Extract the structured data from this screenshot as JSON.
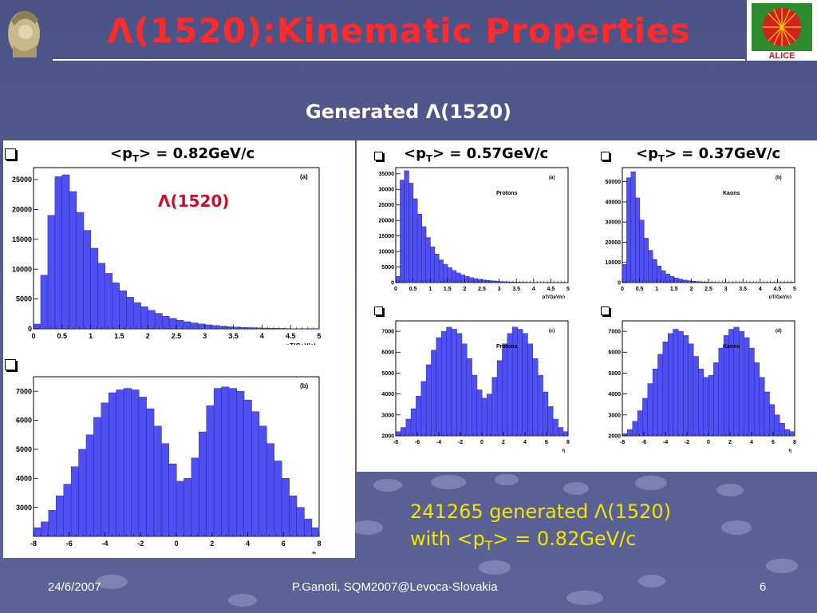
{
  "slide": {
    "title": "Λ(1520):Kinematic Properties",
    "subtitle": "Generated Λ(1520)",
    "caption_line1": "241265 generated Λ(1520)",
    "caption_line2_pre": "with <p",
    "caption_line2_sub": "T",
    "caption_line2_post": "> = 0.82GeV/c",
    "footer_date": "24/6/2007",
    "footer_center": "P.Ganoti, SQM2007@Levoca-Slovakia",
    "footer_page": "6",
    "logo_right_text": "ALICE"
  },
  "panels": {
    "lambda_title_pre": "<p",
    "lambda_title_sub": "T",
    "lambda_title_post": "> = 0.82GeV/c",
    "proton_title_pre": "<p",
    "proton_title_sub": "T",
    "proton_title_post": "> = 0.57GeV/c",
    "kaon_title_pre": "<p",
    "kaon_title_sub": "T",
    "kaon_title_post": "> = 0.37GeV/c",
    "lambda_label": "Λ(1520)"
  },
  "colors": {
    "title": "#ff2a2a",
    "hist_fill": "#4f4ff2",
    "caption": "#f5e400",
    "lambda_label": "#c8102e"
  },
  "chart_data": [
    {
      "id": "lambda-pt",
      "type": "bar",
      "tag": "(a)",
      "label": "",
      "xlabel": "pT(GeV/c)",
      "xlim": [
        0,
        5
      ],
      "ylim": [
        0,
        27000
      ],
      "xticks": [
        "0",
        "0.5",
        "1",
        "1.5",
        "2",
        "2.5",
        "3",
        "3.5",
        "4",
        "4.5",
        "5"
      ],
      "yticks": [
        "0",
        "5000",
        "10000",
        "15000",
        "20000",
        "25000"
      ],
      "values": [
        800,
        9000,
        19000,
        25500,
        25800,
        23000,
        19500,
        16500,
        13500,
        11000,
        9300,
        7700,
        6400,
        5300,
        4400,
        3700,
        3100,
        2600,
        2100,
        1750,
        1450,
        1200,
        1000,
        820,
        680,
        560,
        460,
        380,
        310,
        250,
        200,
        160,
        130,
        100,
        80,
        60,
        40,
        30,
        20,
        10
      ]
    },
    {
      "id": "lambda-eta",
      "type": "bar",
      "tag": "(b)",
      "label": "",
      "xlabel": "η",
      "xlim": [
        -8,
        8
      ],
      "ylim": [
        2000,
        7500
      ],
      "xticks": [
        "-8",
        "-6",
        "-4",
        "-2",
        "0",
        "2",
        "4",
        "6",
        "8"
      ],
      "yticks": [
        "3000",
        "4000",
        "5000",
        "6000",
        "7000"
      ],
      "values": [
        2300,
        2500,
        2900,
        3400,
        3800,
        4400,
        5000,
        5500,
        6100,
        6600,
        6950,
        7050,
        7100,
        7050,
        6800,
        6400,
        5800,
        5200,
        4500,
        3900,
        4000,
        4700,
        5600,
        6500,
        7100,
        7150,
        7100,
        7000,
        6700,
        6300,
        5800,
        5200,
        4600,
        4000,
        3400,
        3000,
        2600,
        2300
      ]
    },
    {
      "id": "proton-pt",
      "type": "bar",
      "tag": "(a)",
      "label": "Protons",
      "xlabel": "pT(GeV/c)",
      "xlim": [
        0,
        5
      ],
      "ylim": [
        0,
        37000
      ],
      "xticks": [
        "0",
        "0.5",
        "1",
        "1.5",
        "2",
        "2.5",
        "3",
        "3.5",
        "4",
        "4.5",
        "5"
      ],
      "yticks": [
        "0",
        "5000",
        "10000",
        "15000",
        "20000",
        "25000",
        "30000",
        "35000"
      ],
      "values": [
        2000,
        33000,
        36000,
        32000,
        27000,
        22000,
        18000,
        14500,
        11500,
        9200,
        7300,
        5900,
        4800,
        3900,
        3100,
        2500,
        2000,
        1600,
        1300,
        1050,
        850,
        680,
        550,
        440,
        350,
        280,
        220,
        180,
        140,
        110,
        90,
        70,
        55,
        45,
        35,
        28,
        22,
        18,
        14,
        10
      ]
    },
    {
      "id": "kaon-pt",
      "type": "bar",
      "tag": "(b)",
      "label": "Kaons",
      "xlabel": "pT(GeV/c)",
      "xlim": [
        0,
        5
      ],
      "ylim": [
        0,
        57000
      ],
      "xticks": [
        "0",
        "0.5",
        "1",
        "1.5",
        "2",
        "2.5",
        "3",
        "3.5",
        "4",
        "4.5",
        "5"
      ],
      "yticks": [
        "0",
        "10000",
        "20000",
        "30000",
        "40000",
        "50000"
      ],
      "values": [
        9000,
        52000,
        55000,
        42000,
        31000,
        22000,
        16000,
        11500,
        8200,
        5900,
        4300,
        3100,
        2300,
        1700,
        1250,
        920,
        680,
        500,
        370,
        270,
        200,
        150,
        110,
        80,
        60,
        45,
        33,
        25,
        18,
        13,
        10,
        7,
        5,
        4,
        3,
        2,
        2,
        1,
        1,
        1
      ]
    },
    {
      "id": "proton-eta",
      "type": "bar",
      "tag": "(c)",
      "label": "Protons",
      "xlabel": "η",
      "xlim": [
        -8,
        8
      ],
      "ylim": [
        2000,
        7500
      ],
      "xticks": [
        "-8",
        "-6",
        "-4",
        "-2",
        "0",
        "2",
        "4",
        "6",
        "8"
      ],
      "yticks": [
        "2000",
        "3000",
        "4000",
        "5000",
        "6000",
        "7000"
      ],
      "values": [
        2200,
        2400,
        2800,
        3300,
        3900,
        4600,
        5400,
        6100,
        6700,
        7000,
        7200,
        7100,
        6900,
        6400,
        5700,
        4900,
        4200,
        3800,
        4000,
        4800,
        5600,
        6400,
        6900,
        7200,
        7100,
        6900,
        6400,
        5700,
        4900,
        4100,
        3400,
        2800,
        2400,
        2200
      ]
    },
    {
      "id": "kaon-eta",
      "type": "bar",
      "tag": "(d)",
      "label": "Kaons",
      "xlabel": "η",
      "xlim": [
        -8,
        8
      ],
      "ylim": [
        2000,
        7500
      ],
      "xticks": [
        "-8",
        "-6",
        "-4",
        "-2",
        "0",
        "2",
        "4",
        "6",
        "8"
      ],
      "yticks": [
        "2000",
        "3000",
        "4000",
        "5000",
        "6000",
        "7000"
      ],
      "values": [
        2100,
        2300,
        2700,
        3200,
        3800,
        4500,
        5200,
        5900,
        6500,
        6900,
        7100,
        7000,
        6800,
        6400,
        5800,
        5200,
        4800,
        4900,
        5500,
        6200,
        6800,
        7100,
        7200,
        7000,
        6700,
        6200,
        5500,
        4800,
        4100,
        3500,
        3000,
        2600,
        2300,
        2200
      ]
    }
  ]
}
